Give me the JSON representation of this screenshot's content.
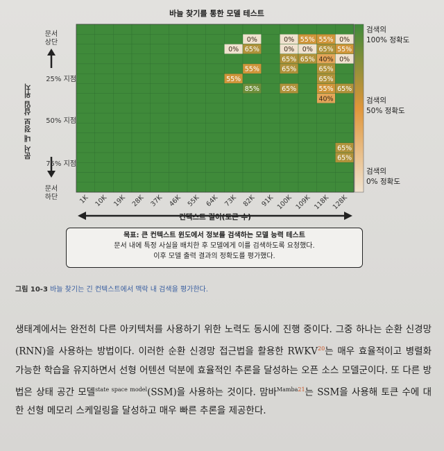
{
  "chart_data": {
    "type": "heatmap",
    "title": "바늘 찾기를 통한 모델 테스트",
    "x_labels": [
      "1K",
      "10K",
      "19K",
      "28K",
      "37K",
      "46K",
      "55K",
      "64K",
      "73K",
      "82K",
      "91K",
      "100K",
      "109K",
      "118K",
      "128K"
    ],
    "xlabel": "컨텍스트 길이(토큰 수)",
    "ylabel": "문서 내 정보 삽입 위치",
    "y_top_label": "문서 상단",
    "y_bottom_label": "문서 하단",
    "y_ticks": [
      {
        "label": "25% 지점",
        "depth": 25
      },
      {
        "label": "50% 지점",
        "depth": 50
      },
      {
        "label": "75% 지점",
        "depth": 75
      }
    ],
    "depth_rows": 17,
    "default_value": 100,
    "cells": [
      {
        "x": "82K",
        "row": 1,
        "value": 0
      },
      {
        "x": "100K",
        "row": 1,
        "value": 0
      },
      {
        "x": "109K",
        "row": 1,
        "value": 55
      },
      {
        "x": "118K",
        "row": 1,
        "value": 55
      },
      {
        "x": "128K",
        "row": 1,
        "value": 0
      },
      {
        "x": "73K",
        "row": 2,
        "value": 0
      },
      {
        "x": "82K",
        "row": 2,
        "value": 65
      },
      {
        "x": "100K",
        "row": 2,
        "value": 0
      },
      {
        "x": "109K",
        "row": 2,
        "value": 0
      },
      {
        "x": "118K",
        "row": 2,
        "value": 65
      },
      {
        "x": "128K",
        "row": 2,
        "value": 55
      },
      {
        "x": "100K",
        "row": 3,
        "value": 65
      },
      {
        "x": "109K",
        "row": 3,
        "value": 65
      },
      {
        "x": "118K",
        "row": 3,
        "value": 40
      },
      {
        "x": "128K",
        "row": 3,
        "value": 0
      },
      {
        "x": "82K",
        "row": 4,
        "value": 55
      },
      {
        "x": "100K",
        "row": 4,
        "value": 65
      },
      {
        "x": "118K",
        "row": 4,
        "value": 65
      },
      {
        "x": "73K",
        "row": 5,
        "value": 55
      },
      {
        "x": "118K",
        "row": 5,
        "value": 65
      },
      {
        "x": "82K",
        "row": 6,
        "value": 85
      },
      {
        "x": "100K",
        "row": 6,
        "value": 65
      },
      {
        "x": "118K",
        "row": 6,
        "value": 55
      },
      {
        "x": "128K",
        "row": 6,
        "value": 65
      },
      {
        "x": "118K",
        "row": 7,
        "value": 40
      },
      {
        "x": "128K",
        "row": 12,
        "value": 65
      },
      {
        "x": "128K",
        "row": 13,
        "value": 65
      }
    ],
    "legend": [
      "검색의 100% 정확도",
      "검색의 50% 정확도",
      "검색의 0% 정확도"
    ],
    "colors": {
      "high": "#3f8a3a",
      "mid": "#e0963a",
      "low": "#f0e2cf",
      "grid": "#2f7030"
    }
  },
  "legend_labels": {
    "top_1": "검색의",
    "top_2": "100% 정확도",
    "mid_1": "검색의",
    "mid_2": "50% 정확도",
    "bot_1": "검색의",
    "bot_2": "0% 정확도"
  },
  "goal_box": {
    "title": "목표: 큰 컨텍스트 윈도에서 정보를 검색하는 모델 능력 테스트",
    "line1": "문서 내에 특정 사실을 배치한 후 모델에게 이를 검색하도록 요청했다.",
    "line2": "이후 모델 출력 결과의 정확도를 평가했다."
  },
  "caption": {
    "number": "그림 10-3",
    "text": "바늘 찾기는 긴 컨텍스트에서 맥락 내 검색을 평가한다."
  },
  "body": {
    "p1": "생태계에서는 완전히 다른 아키텍처를 사용하기 위한 노력도 동시에 진행 중이다. 그중 하나는 순환 신경망(RNN)을 사용하는 방법이다. 이러한 순환 신경망 접근법을 활용한 RWKV",
    "ref20": "20",
    "p2": "는 매우 효율적이고 병렬화 가능한 학습을 유지하면서 선형 어텐션 덕분에 효율적인 추론을 달성하는 오픈 소스 모델군이다. 또 다른 방법은 상태 공간 모델",
    "ssm_en": "state space model",
    "p3": "(SSM)을 사용하는 것이다. 맘바",
    "mamba_en": "Mamba",
    "ref21": "21",
    "p4": "는 SSM을 사용해 토큰 수에 대한 선형 메모리 스케일링을 달성하고 매우 빠른 추론을 제공한다."
  }
}
